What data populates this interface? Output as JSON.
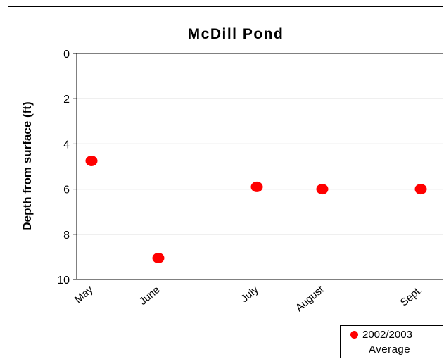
{
  "chart_data": {
    "type": "scatter",
    "title": "McDill Pond",
    "xlabel": "",
    "ylabel": "Depth from surface (ft)",
    "ylim": [
      0,
      10
    ],
    "y_inverted": true,
    "y_ticks": [
      0,
      2,
      4,
      6,
      8,
      10
    ],
    "x_tick_labels": [
      "May",
      "June",
      "July",
      "August",
      "Sept."
    ],
    "grid": "horizontal",
    "legend_position": "bottom-right",
    "series": [
      {
        "name": "2002/2003 Average",
        "color": "#ff0000",
        "points": [
          {
            "x": "May",
            "y": 4.75
          },
          {
            "x": "June",
            "y": 9.05
          },
          {
            "x": "July",
            "y": 5.9
          },
          {
            "x": "August",
            "y": 6.0
          },
          {
            "x": "Sept.",
            "y": 6.0
          }
        ]
      }
    ]
  },
  "legend": {
    "line1": "2002/2003",
    "line2": "Average"
  }
}
